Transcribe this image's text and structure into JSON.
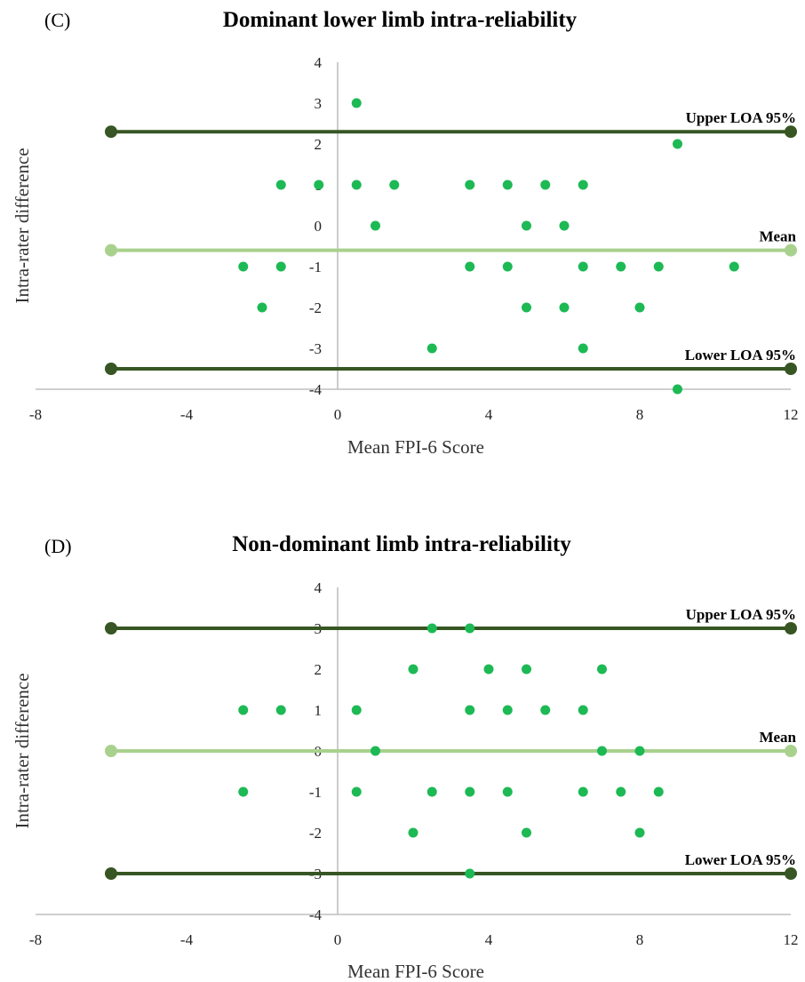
{
  "chart_data": [
    {
      "type": "scatter",
      "panel": "(C)",
      "title": "Dominant lower limb intra-reliability",
      "xlabel": "Mean FPI-6 Score",
      "ylabel": "Intra-rater difference",
      "xlim": [
        -8,
        12
      ],
      "ylim": [
        -4,
        4
      ],
      "x_ticks": [
        -8,
        -4,
        0,
        4,
        8,
        12
      ],
      "y_ticks": [
        4,
        3,
        2,
        1,
        0,
        -1,
        -2,
        -3,
        -4
      ],
      "grid": false,
      "point_color": "#1db954",
      "points": [
        [
          0.5,
          3
        ],
        [
          9,
          2
        ],
        [
          -1.5,
          1
        ],
        [
          -0.5,
          1
        ],
        [
          0.5,
          1
        ],
        [
          1.5,
          1
        ],
        [
          3.5,
          1
        ],
        [
          4.5,
          1
        ],
        [
          5.5,
          1
        ],
        [
          6.5,
          1
        ],
        [
          1,
          0
        ],
        [
          5,
          0
        ],
        [
          6,
          0
        ],
        [
          -2.5,
          -1
        ],
        [
          -1.5,
          -1
        ],
        [
          3.5,
          -1
        ],
        [
          4.5,
          -1
        ],
        [
          6.5,
          -1
        ],
        [
          7.5,
          -1
        ],
        [
          8.5,
          -1
        ],
        [
          10.5,
          -1
        ],
        [
          -2,
          -2
        ],
        [
          5,
          -2
        ],
        [
          6,
          -2
        ],
        [
          8,
          -2
        ],
        [
          2.5,
          -3
        ],
        [
          6.5,
          -3
        ],
        [
          9,
          -4
        ]
      ],
      "reference_lines": [
        {
          "label": "Upper LOA 95%",
          "value": 2.3,
          "x_range": [
            -6,
            12
          ],
          "color": "#375623"
        },
        {
          "label": "Mean",
          "value": -0.6,
          "x_range": [
            -6,
            12
          ],
          "color": "#a9d18e"
        },
        {
          "label": "Lower LOA 95%",
          "value": -3.5,
          "x_range": [
            -6,
            12
          ],
          "color": "#375623"
        }
      ]
    },
    {
      "type": "scatter",
      "panel": "(D)",
      "title": "Non-dominant limb intra-reliability",
      "xlabel": "Mean FPI-6 Score",
      "ylabel": "Intra-rater difference",
      "xlim": [
        -8,
        12
      ],
      "ylim": [
        -4,
        4
      ],
      "x_ticks": [
        -8,
        -4,
        0,
        4,
        8,
        12
      ],
      "y_ticks": [
        4,
        3,
        2,
        1,
        0,
        -1,
        -2,
        -3,
        -4
      ],
      "grid": false,
      "point_color": "#1db954",
      "points": [
        [
          2.5,
          3
        ],
        [
          3.5,
          3
        ],
        [
          2,
          2
        ],
        [
          4,
          2
        ],
        [
          5,
          2
        ],
        [
          7,
          2
        ],
        [
          -2.5,
          1
        ],
        [
          -1.5,
          1
        ],
        [
          0.5,
          1
        ],
        [
          3.5,
          1
        ],
        [
          4.5,
          1
        ],
        [
          5.5,
          1
        ],
        [
          6.5,
          1
        ],
        [
          1,
          0
        ],
        [
          7,
          0
        ],
        [
          8,
          0
        ],
        [
          -2.5,
          -1
        ],
        [
          0.5,
          -1
        ],
        [
          2.5,
          -1
        ],
        [
          3.5,
          -1
        ],
        [
          4.5,
          -1
        ],
        [
          6.5,
          -1
        ],
        [
          7.5,
          -1
        ],
        [
          8.5,
          -1
        ],
        [
          2,
          -2
        ],
        [
          5,
          -2
        ],
        [
          8,
          -2
        ],
        [
          3.5,
          -3
        ]
      ],
      "reference_lines": [
        {
          "label": "Upper LOA 95%",
          "value": 3,
          "x_range": [
            -6,
            12
          ],
          "color": "#375623"
        },
        {
          "label": "Mean",
          "value": 0,
          "x_range": [
            -6,
            12
          ],
          "color": "#a9d18e"
        },
        {
          "label": "Lower LOA 95%",
          "value": -3,
          "x_range": [
            -6,
            12
          ],
          "color": "#375623"
        }
      ]
    }
  ]
}
